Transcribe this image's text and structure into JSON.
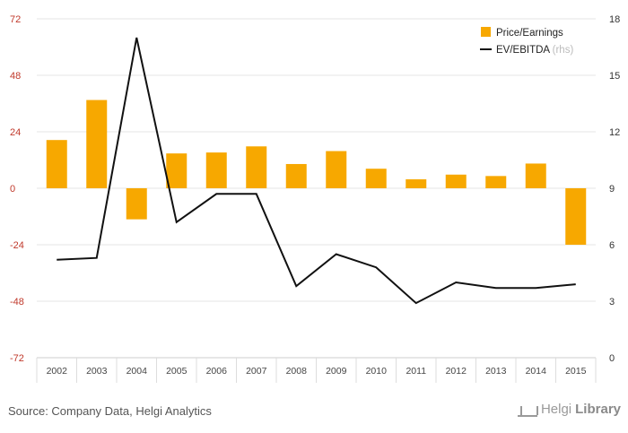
{
  "chart_data": {
    "type": "bar",
    "categories": [
      "2002",
      "2003",
      "2004",
      "2005",
      "2006",
      "2007",
      "2008",
      "2009",
      "2010",
      "2011",
      "2012",
      "2013",
      "2014",
      "2015"
    ],
    "series": [
      {
        "name": "Price/Earnings",
        "type": "bar",
        "axis": "left",
        "color": "#f7a800",
        "values": [
          20.5,
          37.5,
          -13.2,
          14.8,
          15.2,
          17.8,
          10.3,
          15.8,
          8.3,
          3.8,
          5.8,
          5.2,
          10.5,
          -24.0
        ]
      },
      {
        "name": "EV/EBITDA",
        "legend_suffix": "(rhs)",
        "type": "line",
        "axis": "right",
        "color": "#111111",
        "values": [
          5.2,
          5.3,
          17.0,
          7.2,
          8.7,
          8.7,
          3.8,
          5.5,
          4.8,
          2.9,
          4.0,
          3.7,
          3.7,
          3.9
        ]
      }
    ],
    "y_left": {
      "ticks": [
        72,
        48,
        24,
        0,
        -24,
        -48,
        -72
      ],
      "ylim": [
        -72,
        72
      ]
    },
    "y_right": {
      "ticks": [
        18,
        15,
        12,
        9,
        6,
        3,
        0
      ],
      "ylim": [
        0,
        18
      ]
    },
    "grid": true,
    "legend_position": "top-right"
  },
  "footer": {
    "source": "Source: Company Data, Helgi Analytics",
    "logo_text_light": "Helgi",
    "logo_text_bold": "Library"
  }
}
